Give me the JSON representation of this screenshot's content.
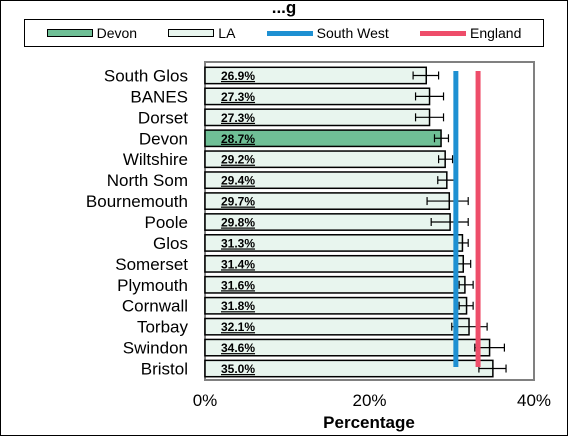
{
  "chart_data": {
    "type": "bar",
    "orientation": "horizontal",
    "title": "...g",
    "xlabel": "Percentage",
    "ylabel": "",
    "xlim": [
      0,
      40
    ],
    "x_ticks": [
      "0%",
      "20%",
      "40%"
    ],
    "grid": false,
    "legend_position": "top",
    "legend": [
      {
        "name": "Devon",
        "kind": "bar",
        "color": "#6fbf96"
      },
      {
        "name": "LA",
        "kind": "bar",
        "color": "#e8f5ee"
      },
      {
        "name": "South West",
        "kind": "line",
        "color": "#1e90d2"
      },
      {
        "name": "England",
        "kind": "line",
        "color": "#ee4d6a"
      }
    ],
    "categories": [
      "South Glos",
      "BANES",
      "Dorset",
      "Devon",
      "Wiltshire",
      "North Som",
      "Bournemouth",
      "Poole",
      "Glos",
      "Somerset",
      "Plymouth",
      "Cornwall",
      "Torbay",
      "Swindon",
      "Bristol"
    ],
    "values": [
      26.9,
      27.3,
      27.3,
      28.7,
      29.2,
      29.4,
      29.7,
      29.8,
      31.3,
      31.4,
      31.6,
      31.8,
      32.1,
      34.6,
      35.0
    ],
    "value_labels": [
      "26.9%",
      "27.3%",
      "27.3%",
      "28.7%",
      "29.2%",
      "29.4%",
      "29.7%",
      "29.8%",
      "31.3%",
      "31.4%",
      "31.6%",
      "31.8%",
      "32.1%",
      "34.6%",
      "35.0%"
    ],
    "error_low": [
      25.3,
      25.6,
      25.6,
      27.9,
      28.4,
      28.3,
      27.0,
      27.5,
      30.5,
      30.6,
      30.9,
      30.9,
      30.0,
      32.8,
      33.3
    ],
    "error_high": [
      28.4,
      29.0,
      29.0,
      29.6,
      30.1,
      30.6,
      32.0,
      32.0,
      32.0,
      32.3,
      32.6,
      32.6,
      34.3,
      36.4,
      36.6
    ],
    "highlight": "Devon",
    "reference_lines": [
      {
        "name": "South West",
        "value": 30.5,
        "color": "#1e90d2"
      },
      {
        "name": "England",
        "value": 33.2,
        "color": "#ee4d6a"
      }
    ]
  }
}
